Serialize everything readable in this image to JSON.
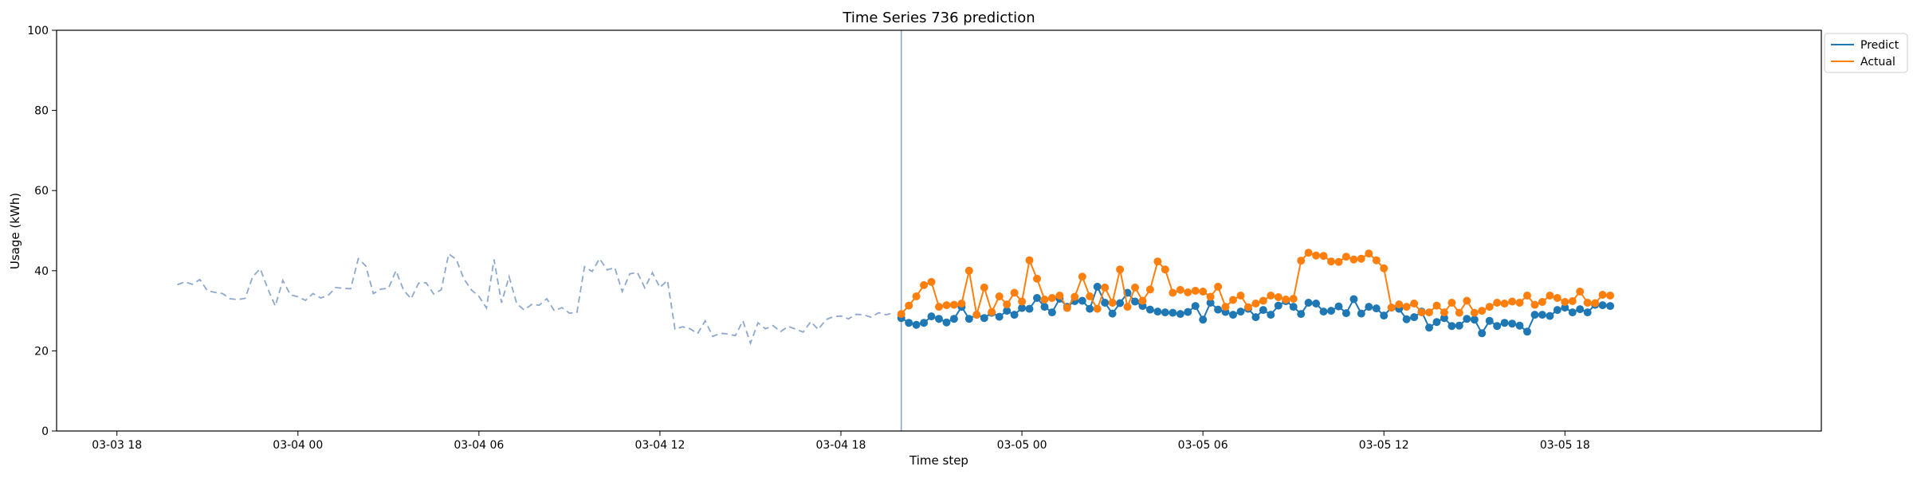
{
  "chart_data": {
    "type": "line",
    "title": "Time Series 736 prediction",
    "xlabel": "Time step",
    "ylabel": "Usage (kWh)",
    "ylim": [
      0,
      100
    ],
    "y_ticks": [
      0,
      20,
      40,
      60,
      80,
      100
    ],
    "xlim": [
      "2024-03-03T16:00",
      "2024-03-06T02:30"
    ],
    "x_ticks": [
      {
        "t": "2024-03-03T18:00",
        "label": "03-03 18"
      },
      {
        "t": "2024-03-04T00:00",
        "label": "03-04 00"
      },
      {
        "t": "2024-03-04T06:00",
        "label": "03-04 06"
      },
      {
        "t": "2024-03-04T12:00",
        "label": "03-04 12"
      },
      {
        "t": "2024-03-04T18:00",
        "label": "03-04 18"
      },
      {
        "t": "2024-03-05T00:00",
        "label": "03-05 00"
      },
      {
        "t": "2024-03-05T06:00",
        "label": "03-05 06"
      },
      {
        "t": "2024-03-05T12:00",
        "label": "03-05 12"
      },
      {
        "t": "2024-03-05T18:00",
        "label": "03-05 18"
      }
    ],
    "grid": false,
    "legend_placement": "outside-top-right",
    "forecast_start": "2024-03-04T20:00",
    "history": {
      "start": "2024-03-03T20:00",
      "step_minutes": 15,
      "color": "#8da8cc",
      "values": [
        36.5,
        37.2,
        36.6,
        37.8,
        35.0,
        34.6,
        34.3,
        33.0,
        32.8,
        33.1,
        38.5,
        40.5,
        35.5,
        31.2,
        37.6,
        34.0,
        33.5,
        32.6,
        34.3,
        33.2,
        33.8,
        35.8,
        35.6,
        35.5,
        43.0,
        41.2,
        34.3,
        35.4,
        35.6,
        40.0,
        35.2,
        33.0,
        36.9,
        37.0,
        34.2,
        35.2,
        44.2,
        42.8,
        38.0,
        35.2,
        33.6,
        30.7,
        42.8,
        32.0,
        38.5,
        31.8,
        30.2,
        31.6,
        31.4,
        33.0,
        30.0,
        30.8,
        29.4,
        29.6,
        41.0,
        39.8,
        43.0,
        40.2,
        40.8,
        34.8,
        39.2,
        39.6,
        35.7,
        39.5,
        35.8,
        37.6,
        25.4,
        26.0,
        25.5,
        24.3,
        27.5,
        23.6,
        24.4,
        24.2,
        23.8,
        27.5,
        21.9,
        27.0,
        25.5,
        26.3,
        24.8,
        26.1,
        25.4,
        24.7,
        27.3,
        25.3,
        27.8,
        28.5,
        28.7,
        28.0,
        29.1,
        29.0,
        28.4,
        29.5,
        29.0,
        29.5
      ]
    },
    "series": [
      {
        "name": "Predict",
        "color": "#1f77b4",
        "start": "2024-03-04T20:00",
        "step_minutes": 15,
        "values": [
          28.2,
          27.0,
          26.5,
          27.0,
          28.6,
          28.0,
          27.1,
          28.0,
          31.0,
          28.0,
          29.0,
          28.2,
          29.5,
          28.5,
          30.0,
          29.0,
          30.7,
          30.5,
          33.2,
          31.0,
          29.6,
          33.0,
          31.0,
          32.4,
          32.5,
          30.5,
          36.0,
          32.0,
          29.3,
          31.9,
          34.5,
          32.3,
          31.2,
          30.3,
          29.8,
          29.6,
          29.5,
          29.2,
          29.7,
          31.2,
          27.8,
          32.0,
          30.3,
          29.7,
          29.0,
          29.8,
          30.5,
          28.4,
          30.2,
          29.0,
          31.3,
          32.4,
          31.0,
          29.2,
          32.0,
          31.8,
          29.8,
          30.0,
          31.1,
          29.4,
          32.9,
          29.3,
          31.0,
          30.6,
          28.8,
          30.8,
          30.5,
          27.9,
          28.4,
          29.8,
          25.8,
          27.2,
          28.2,
          26.2,
          26.3,
          28.0,
          27.8,
          24.4,
          27.5,
          26.2,
          27.0,
          26.8,
          26.3,
          24.8,
          29.0,
          29.0,
          28.7,
          30.2,
          30.8,
          29.6,
          30.4,
          29.6,
          31.5,
          31.4,
          31.2
        ]
      },
      {
        "name": "Actual",
        "color": "#ff7f0e",
        "start": "2024-03-04T20:00",
        "step_minutes": 15,
        "values": [
          29.2,
          31.3,
          33.6,
          36.4,
          37.2,
          31.0,
          31.4,
          31.5,
          31.8,
          40.0,
          29.0,
          35.8,
          29.7,
          33.6,
          31.6,
          34.5,
          32.3,
          42.6,
          38.0,
          32.8,
          33.2,
          33.8,
          30.7,
          33.5,
          38.5,
          33.6,
          30.5,
          35.8,
          32.0,
          40.3,
          31.0,
          35.8,
          32.5,
          35.3,
          42.3,
          40.3,
          34.5,
          35.2,
          34.6,
          35.0,
          34.8,
          33.5,
          36.0,
          31.0,
          32.7,
          33.8,
          30.9,
          31.8,
          32.5,
          33.8,
          33.4,
          32.8,
          33.0,
          42.5,
          44.5,
          43.8,
          43.7,
          42.3,
          42.2,
          43.5,
          42.8,
          43.0,
          44.3,
          42.6,
          40.6,
          30.8,
          31.6,
          31.0,
          31.8,
          29.6,
          29.6,
          31.3,
          29.6,
          32.0,
          29.5,
          32.5,
          29.5,
          30.0,
          31.0,
          32.0,
          31.8,
          32.3,
          32.0,
          33.8,
          31.5,
          32.2,
          33.8,
          33.2,
          32.2,
          32.4,
          34.8,
          32.0,
          31.9,
          34.0,
          33.8
        ]
      }
    ]
  }
}
